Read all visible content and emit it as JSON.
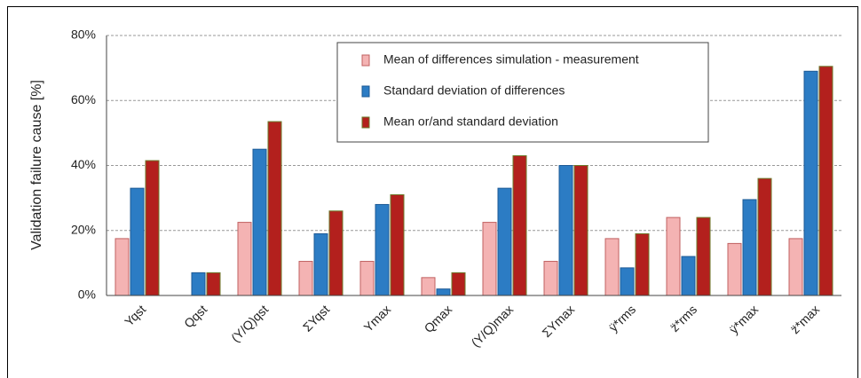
{
  "chart_data": {
    "type": "bar",
    "ylabel": "Validation failure cause  [%]",
    "categories": [
      "Yqst",
      "Qqst",
      "(Y/Q)qst",
      "ΣYqst",
      "Ymax",
      "Qmax",
      "(Y/Q)max",
      "ΣYmax",
      "ÿ*rms",
      "z̈*rms",
      "ÿ*max",
      "z̈*max"
    ],
    "series": [
      {
        "name": "Mean of differences simulation - measurement",
        "color": "#f4b3b3",
        "values": [
          17.5,
          0,
          22.5,
          10.5,
          10.5,
          5.5,
          22.5,
          10.5,
          17.5,
          24,
          16,
          17.5
        ]
      },
      {
        "name": "Standard deviation of differences",
        "color": "#2c7cc4",
        "values": [
          33,
          7,
          45,
          19,
          28,
          2,
          33,
          40,
          8.5,
          12,
          29.5,
          69
        ]
      },
      {
        "name": "Mean or/and standard deviation",
        "color": "#b3201d",
        "values": [
          41.5,
          7,
          53.5,
          26,
          31,
          7,
          43,
          40,
          19,
          24,
          36,
          70.5
        ]
      }
    ],
    "ylim": [
      0,
      80
    ],
    "yticks": [
      {
        "value": 0,
        "label": "0%"
      },
      {
        "value": 20,
        "label": "20%"
      },
      {
        "value": 40,
        "label": "40%"
      },
      {
        "value": 60,
        "label": "60%"
      },
      {
        "value": 80,
        "label": "80%"
      }
    ],
    "grid": true,
    "legend": "top-right"
  }
}
